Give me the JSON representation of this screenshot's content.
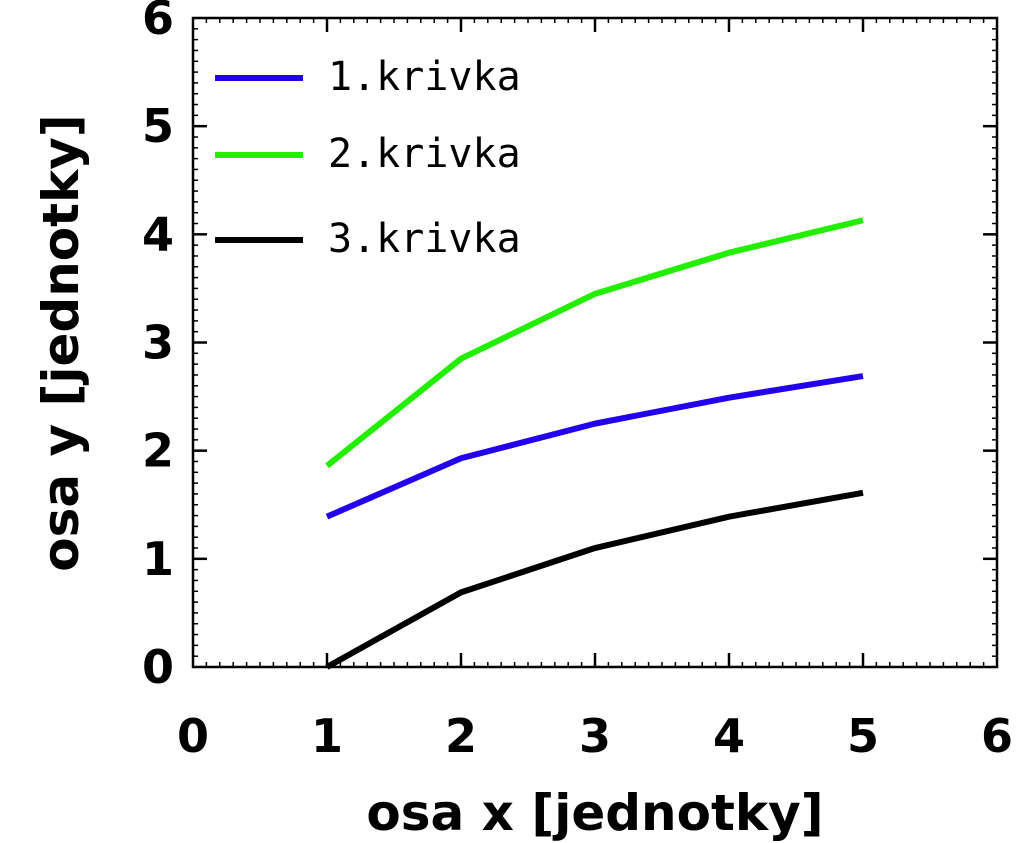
{
  "chart_data": {
    "type": "line",
    "title": "",
    "xlabel": "osa x [jednotky]",
    "ylabel": "osa y [jednotky]",
    "xlim": [
      0,
      6
    ],
    "ylim": [
      0,
      6
    ],
    "xticks": [
      "0",
      "1",
      "2",
      "3",
      "4",
      "5",
      "6"
    ],
    "yticks": [
      "0",
      "1",
      "2",
      "3",
      "4",
      "5",
      "6"
    ],
    "grid": false,
    "legend_position": "top-left",
    "x": [
      1,
      2,
      3,
      4,
      5
    ],
    "series": [
      {
        "name": "1.krivka",
        "color": "#2200ee",
        "values": [
          1.39,
          1.93,
          2.25,
          2.49,
          2.69
        ]
      },
      {
        "name": "2.krivka",
        "color": "#22ee00",
        "values": [
          1.86,
          2.85,
          3.45,
          3.83,
          4.13
        ]
      },
      {
        "name": "3.krivka",
        "color": "#000000",
        "values": [
          0.0,
          0.69,
          1.1,
          1.39,
          1.61
        ]
      }
    ]
  }
}
